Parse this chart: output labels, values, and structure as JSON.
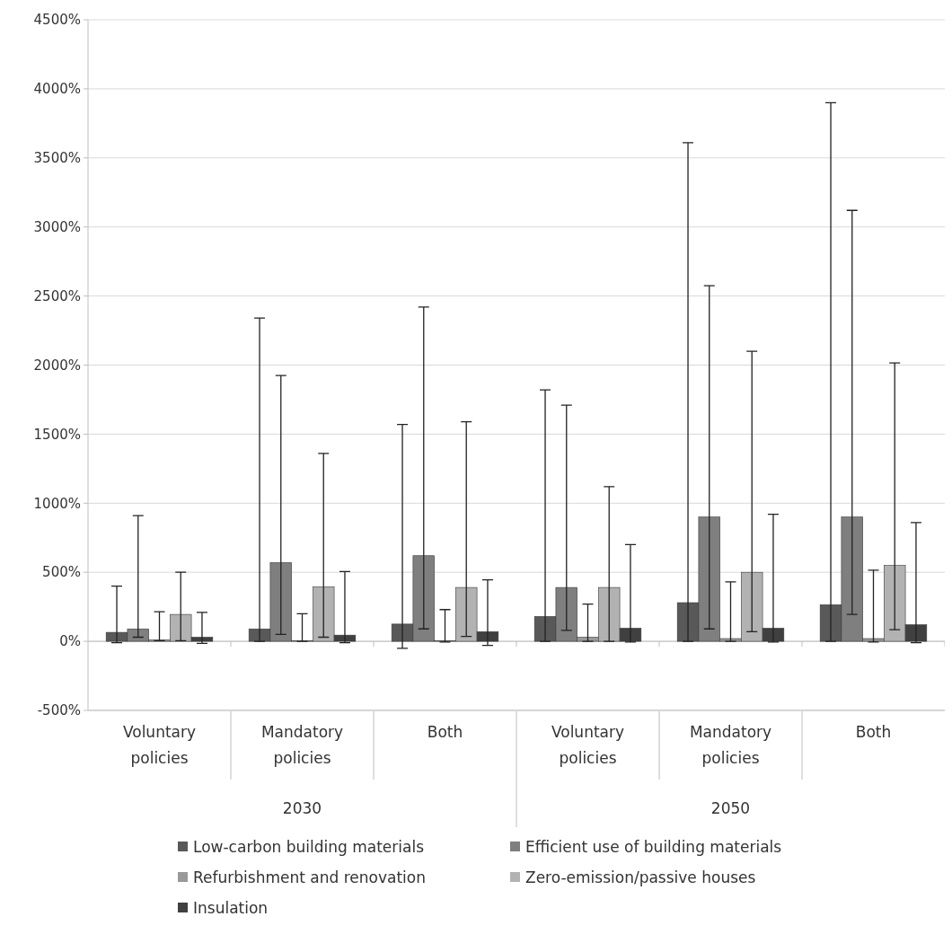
{
  "chart_data": {
    "type": "bar",
    "categories": [
      "Voluntary policies",
      "Mandatory policies",
      "Both",
      "Voluntary policies",
      "Mandatory policies",
      "Both"
    ],
    "annotations": [
      "2030",
      "2050"
    ],
    "series": [
      {
        "name": "Low-carbon building materials",
        "color": "#595959",
        "values": [
          65,
          90,
          125,
          180,
          280,
          265
        ],
        "errors": [
          [
            -10,
            400
          ],
          [
            0,
            2340
          ],
          [
            -50,
            1570
          ],
          [
            0,
            1820
          ],
          [
            0,
            3610
          ],
          [
            0,
            3900
          ]
        ]
      },
      {
        "name": "Efficient use of building materials",
        "color": "#7f7f7f",
        "values": [
          90,
          570,
          620,
          390,
          900,
          900
        ],
        "errors": [
          [
            30,
            910
          ],
          [
            50,
            1925
          ],
          [
            90,
            2420
          ],
          [
            80,
            1710
          ],
          [
            90,
            2575
          ],
          [
            195,
            3120
          ]
        ]
      },
      {
        "name": "Refurbishment and renovation",
        "color": "#999999",
        "values": [
          10,
          5,
          5,
          30,
          20,
          20
        ],
        "errors": [
          [
            5,
            215
          ],
          [
            0,
            200
          ],
          [
            -5,
            230
          ],
          [
            0,
            270
          ],
          [
            0,
            430
          ],
          [
            -5,
            515
          ]
        ]
      },
      {
        "name": "Zero-emission/passive houses",
        "color": "#b2b2b2",
        "values": [
          195,
          395,
          390,
          390,
          500,
          550
        ],
        "errors": [
          [
            5,
            500
          ],
          [
            30,
            1360
          ],
          [
            35,
            1590
          ],
          [
            0,
            1120
          ],
          [
            70,
            2100
          ],
          [
            85,
            2015
          ]
        ]
      },
      {
        "name": "Insulation",
        "color": "#404040",
        "values": [
          30,
          45,
          70,
          95,
          95,
          120
        ],
        "errors": [
          [
            -15,
            210
          ],
          [
            -10,
            505
          ],
          [
            -30,
            445
          ],
          [
            -5,
            700
          ],
          [
            -5,
            920
          ],
          [
            -10,
            860
          ]
        ]
      }
    ],
    "ylim": [
      -500,
      4500
    ],
    "yticks": [
      {
        "value": -500,
        "label": "-500%"
      },
      {
        "value": 0,
        "label": "0%"
      },
      {
        "value": 500,
        "label": "500%"
      },
      {
        "value": 1000,
        "label": "1000%"
      },
      {
        "value": 1500,
        "label": "1500%"
      },
      {
        "value": 2000,
        "label": "2000%"
      },
      {
        "value": 2500,
        "label": "2500%"
      },
      {
        "value": 3000,
        "label": "3000%"
      },
      {
        "value": 3500,
        "label": "3500%"
      },
      {
        "value": 4000,
        "label": "4000%"
      },
      {
        "value": 4500,
        "label": "4500%"
      }
    ],
    "grid": "y",
    "legend": "bottom"
  }
}
